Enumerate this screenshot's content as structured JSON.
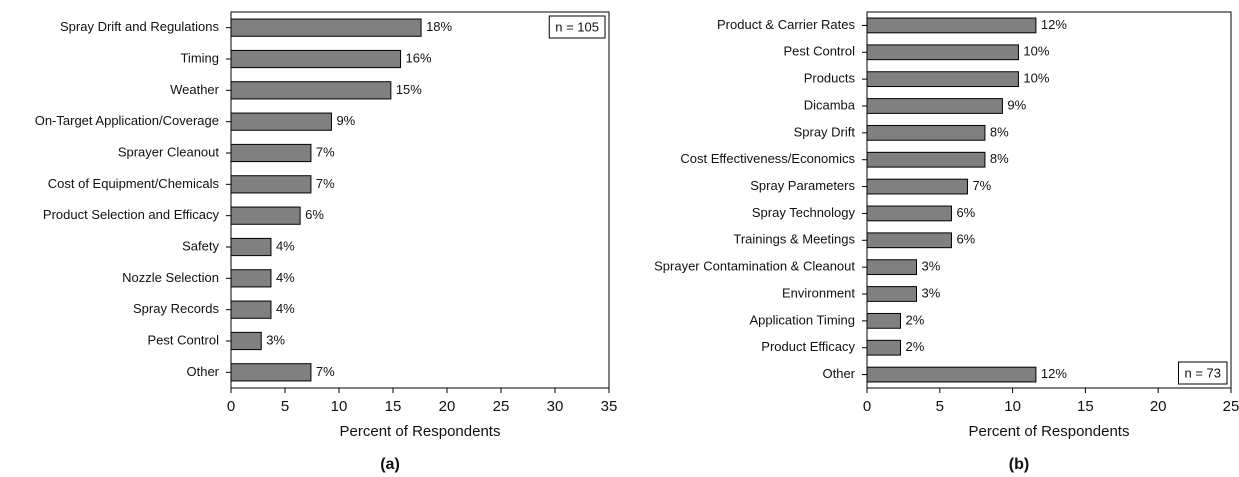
{
  "chart_data": [
    {
      "type": "barh",
      "panel": "(a)",
      "xlabel": "Percent of Respondents",
      "note": "n = 105",
      "note_corner": "upper right",
      "categories": [
        "Spray Drift and Regulations",
        "Timing",
        "Weather",
        "On-Target Application/Coverage",
        "Sprayer Cleanout",
        "Cost of Equipment/Chemicals",
        "Product Selection and Efficacy",
        "Safety",
        "Nozzle Selection",
        "Spray Records",
        "Pest Control",
        "Other"
      ],
      "values": [
        17.6,
        15.7,
        14.8,
        9.3,
        7.4,
        7.4,
        6.4,
        3.7,
        3.7,
        3.7,
        2.8,
        7.4
      ],
      "value_labels": [
        "18%",
        "16%",
        "15%",
        "9%",
        "7%",
        "7%",
        "6%",
        "4%",
        "4%",
        "4%",
        "3%",
        "7%"
      ],
      "color": "#808080",
      "xlim": [
        0,
        35
      ],
      "xticks": [
        0,
        5,
        10,
        15,
        20,
        25,
        30,
        35
      ]
    },
    {
      "type": "barh",
      "panel": "(b)",
      "xlabel": "Percent of Respondents",
      "note": "n = 73",
      "note_corner": "lower right",
      "categories": [
        "Product & Carrier Rates",
        "Pest Control",
        "Products",
        "Dicamba",
        "Spray Drift",
        "Cost Effectiveness/Economics",
        "Spray Parameters",
        "Spray Technology",
        "Trainings & Meetings",
        "Sprayer Contamination & Cleanout",
        "Environment",
        "Application Timing",
        "Product Efficacy",
        "Other"
      ],
      "values": [
        11.6,
        10.4,
        10.4,
        9.3,
        8.1,
        8.1,
        6.9,
        5.8,
        5.8,
        3.4,
        3.4,
        2.3,
        2.3,
        11.6
      ],
      "value_labels": [
        "12%",
        "10%",
        "10%",
        "9%",
        "8%",
        "8%",
        "7%",
        "6%",
        "6%",
        "3%",
        "3%",
        "2%",
        "2%",
        "12%"
      ],
      "color": "#808080",
      "xlim": [
        0,
        25
      ],
      "xticks": [
        0,
        5,
        10,
        15,
        20,
        25
      ]
    }
  ]
}
